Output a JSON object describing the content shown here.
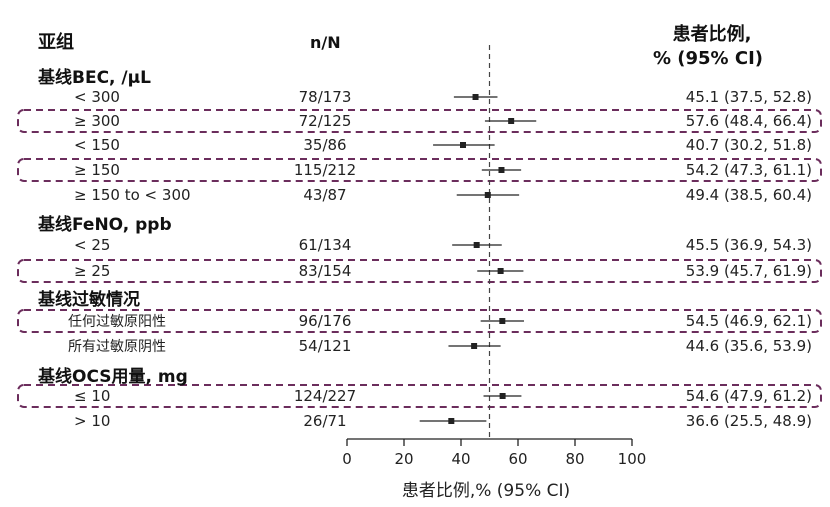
{
  "headers": {
    "subgroup": "亚组",
    "nN": "n/N",
    "pct_line1": "患者比例,",
    "pct_line2": "% (95% CI)"
  },
  "chart_data": {
    "type": "forest",
    "xlabel": "患者比例,% (95% CI)",
    "xlim": [
      0,
      100
    ],
    "xticks": [
      0,
      20,
      40,
      60,
      80,
      100
    ],
    "reference_line": 50,
    "groups": [
      {
        "title": "基线BEC, /μL",
        "rows": [
          {
            "label": "< 300",
            "n": "78/173",
            "est": 45.1,
            "lo": 37.5,
            "hi": 52.8,
            "text": "45.1 (37.5, 52.8)",
            "highlight": false
          },
          {
            "label": "≥ 300",
            "n": "72/125",
            "est": 57.6,
            "lo": 48.4,
            "hi": 66.4,
            "text": "57.6 (48.4, 66.4)",
            "highlight": true
          },
          {
            "label": "< 150",
            "n": "35/86",
            "est": 40.7,
            "lo": 30.2,
            "hi": 51.8,
            "text": "40.7 (30.2, 51.8)",
            "highlight": false
          },
          {
            "label": "≥ 150",
            "n": "115/212",
            "est": 54.2,
            "lo": 47.3,
            "hi": 61.1,
            "text": "54.2 (47.3, 61.1)",
            "highlight": true
          },
          {
            "label": "≥ 150 to < 300",
            "n": "43/87",
            "est": 49.4,
            "lo": 38.5,
            "hi": 60.4,
            "text": "49.4 (38.5, 60.4)",
            "highlight": false
          }
        ]
      },
      {
        "title": "基线FeNO, ppb",
        "rows": [
          {
            "label": "< 25",
            "n": "61/134",
            "est": 45.5,
            "lo": 36.9,
            "hi": 54.3,
            "text": "45.5 (36.9, 54.3)",
            "highlight": false
          },
          {
            "label": "≥ 25",
            "n": "83/154",
            "est": 53.9,
            "lo": 45.7,
            "hi": 61.9,
            "text": "53.9 (45.7, 61.9)",
            "highlight": true
          }
        ]
      },
      {
        "title": "基线过敏情况",
        "rows": [
          {
            "label": "任何过敏原阳性",
            "n": "96/176",
            "est": 54.5,
            "lo": 46.9,
            "hi": 62.1,
            "text": "54.5 (46.9, 62.1)",
            "highlight": true
          },
          {
            "label": "所有过敏原阴性",
            "n": "54/121",
            "est": 44.6,
            "lo": 35.6,
            "hi": 53.9,
            "text": "44.6 (35.6, 53.9)",
            "highlight": false
          }
        ]
      },
      {
        "title": "基线OCS用量, mg",
        "rows": [
          {
            "label": "≤ 10",
            "n": "124/227",
            "est": 54.6,
            "lo": 47.9,
            "hi": 61.2,
            "text": "54.6 (47.9, 61.2)",
            "highlight": true
          },
          {
            "label": "> 10",
            "n": "26/71",
            "est": 36.6,
            "lo": 25.5,
            "hi": 48.9,
            "text": "36.6 (25.5, 48.9)",
            "highlight": false
          }
        ]
      }
    ]
  },
  "colors": {
    "highlight_box": "#6b2d5c",
    "text": "#222222",
    "marker": "#222222"
  }
}
